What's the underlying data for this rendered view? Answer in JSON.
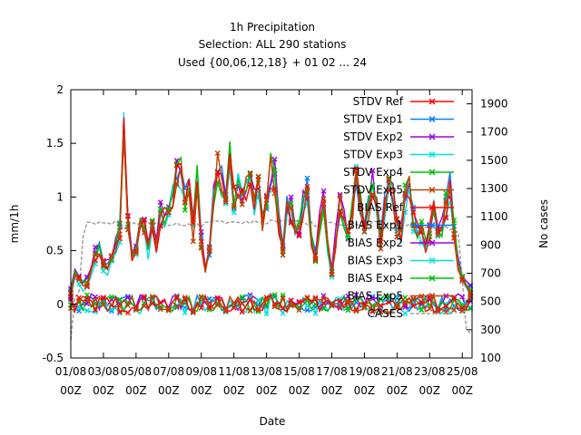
{
  "chart_data": {
    "type": "line",
    "title_lines": [
      "1h Precipitation",
      "Selection: ALL    290 stations",
      "Used {00,06,12,18} + 01 02 ... 24"
    ],
    "xlabel": "Date",
    "ylabel": "mm/1h",
    "y2label": "No cases",
    "ylim": [
      -0.5,
      2
    ],
    "y2lim": [
      100,
      2000
    ],
    "xlim": [
      0,
      24.6
    ],
    "yticks": [
      "-0.5",
      "0",
      "0.5",
      "1",
      "1.5",
      "2"
    ],
    "y2ticks": [
      "100",
      "300",
      "500",
      "700",
      "900",
      "1100",
      "1300",
      "1500",
      "1700",
      "1900"
    ],
    "xticks": [
      {
        "t": 0,
        "l1": "01/08",
        "l2": "00Z"
      },
      {
        "t": 2,
        "l1": "03/08",
        "l2": "00Z"
      },
      {
        "t": 4,
        "l1": "05/08",
        "l2": "00Z"
      },
      {
        "t": 6,
        "l1": "07/08",
        "l2": "00Z"
      },
      {
        "t": 8,
        "l1": "09/08",
        "l2": "00Z"
      },
      {
        "t": 10,
        "l1": "11/08",
        "l2": "00Z"
      },
      {
        "t": 12,
        "l1": "13/08",
        "l2": "00Z"
      },
      {
        "t": 14,
        "l1": "15/08",
        "l2": "00Z"
      },
      {
        "t": 16,
        "l1": "17/08",
        "l2": "00Z"
      },
      {
        "t": 18,
        "l1": "19/08",
        "l2": "00Z"
      },
      {
        "t": 20,
        "l1": "21/08",
        "l2": "00Z"
      },
      {
        "t": 22,
        "l1": "23/08",
        "l2": "00Z"
      },
      {
        "t": 24,
        "l1": "25/08",
        "l2": "00Z"
      }
    ],
    "legend_position": "top-right",
    "stdv_profile": [
      {
        "t": 0.0,
        "v": 0.1
      },
      {
        "t": 0.3,
        "v": 0.3
      },
      {
        "t": 0.6,
        "v": 0.2
      },
      {
        "t": 0.9,
        "v": 0.15
      },
      {
        "t": 1.2,
        "v": 0.3
      },
      {
        "t": 1.5,
        "v": 0.45
      },
      {
        "t": 1.8,
        "v": 0.55
      },
      {
        "t": 2.1,
        "v": 0.3
      },
      {
        "t": 2.4,
        "v": 0.4
      },
      {
        "t": 2.7,
        "v": 0.5
      },
      {
        "t": 3.0,
        "v": 0.7
      },
      {
        "t": 3.15,
        "v": 1.15
      },
      {
        "t": 3.3,
        "v": 1.95
      },
      {
        "t": 3.5,
        "v": 0.8
      },
      {
        "t": 3.8,
        "v": 0.4
      },
      {
        "t": 4.1,
        "v": 0.6
      },
      {
        "t": 4.4,
        "v": 0.95
      },
      {
        "t": 4.7,
        "v": 0.45
      },
      {
        "t": 5.0,
        "v": 0.8
      },
      {
        "t": 5.3,
        "v": 0.5
      },
      {
        "t": 5.6,
        "v": 1.0
      },
      {
        "t": 5.9,
        "v": 0.7
      },
      {
        "t": 6.1,
        "v": 1.25
      },
      {
        "t": 6.4,
        "v": 0.85
      },
      {
        "t": 6.6,
        "v": 1.55
      },
      {
        "t": 6.9,
        "v": 0.9
      },
      {
        "t": 7.2,
        "v": 1.2
      },
      {
        "t": 7.5,
        "v": 0.7
      },
      {
        "t": 7.8,
        "v": 1.3
      },
      {
        "t": 8.0,
        "v": 0.6
      },
      {
        "t": 8.2,
        "v": 0.3
      },
      {
        "t": 8.5,
        "v": 0.5
      },
      {
        "t": 8.8,
        "v": 1.1
      },
      {
        "t": 9.1,
        "v": 1.4
      },
      {
        "t": 9.4,
        "v": 0.9
      },
      {
        "t": 9.7,
        "v": 1.45
      },
      {
        "t": 10.0,
        "v": 1.0
      },
      {
        "t": 10.3,
        "v": 1.2
      },
      {
        "t": 10.6,
        "v": 0.9
      },
      {
        "t": 10.9,
        "v": 1.35
      },
      {
        "t": 11.2,
        "v": 0.9
      },
      {
        "t": 11.5,
        "v": 1.1
      },
      {
        "t": 11.8,
        "v": 0.7
      },
      {
        "t": 12.1,
        "v": 1.15
      },
      {
        "t": 12.4,
        "v": 1.38
      },
      {
        "t": 12.7,
        "v": 0.8
      },
      {
        "t": 13.0,
        "v": 0.5
      },
      {
        "t": 13.3,
        "v": 1.0
      },
      {
        "t": 13.6,
        "v": 0.8
      },
      {
        "t": 13.9,
        "v": 0.6
      },
      {
        "t": 14.2,
        "v": 0.9
      },
      {
        "t": 14.5,
        "v": 1.05
      },
      {
        "t": 14.8,
        "v": 0.5
      },
      {
        "t": 15.1,
        "v": 0.4
      },
      {
        "t": 15.4,
        "v": 1.08
      },
      {
        "t": 15.7,
        "v": 0.6
      },
      {
        "t": 16.0,
        "v": 0.3
      },
      {
        "t": 16.3,
        "v": 0.7
      },
      {
        "t": 16.6,
        "v": 1.05
      },
      {
        "t": 16.9,
        "v": 0.55
      },
      {
        "t": 17.2,
        "v": 0.8
      },
      {
        "t": 17.5,
        "v": 1.2
      },
      {
        "t": 17.8,
        "v": 0.9
      },
      {
        "t": 18.1,
        "v": 0.6
      },
      {
        "t": 18.4,
        "v": 1.2
      },
      {
        "t": 18.7,
        "v": 1.0
      },
      {
        "t": 19.0,
        "v": 0.6
      },
      {
        "t": 19.3,
        "v": 1.0
      },
      {
        "t": 19.6,
        "v": 1.3
      },
      {
        "t": 19.9,
        "v": 0.8
      },
      {
        "t": 20.2,
        "v": 0.6
      },
      {
        "t": 20.5,
        "v": 1.0
      },
      {
        "t": 20.8,
        "v": 1.2
      },
      {
        "t": 21.1,
        "v": 0.6
      },
      {
        "t": 21.4,
        "v": 0.8
      },
      {
        "t": 21.7,
        "v": 0.5
      },
      {
        "t": 22.0,
        "v": 0.7
      },
      {
        "t": 22.3,
        "v": 1.0
      },
      {
        "t": 22.6,
        "v": 0.6
      },
      {
        "t": 22.9,
        "v": 0.8
      },
      {
        "t": 23.2,
        "v": 1.2
      },
      {
        "t": 23.5,
        "v": 0.7
      },
      {
        "t": 23.8,
        "v": 0.3
      },
      {
        "t": 24.1,
        "v": 0.2
      },
      {
        "t": 24.4,
        "v": 0.15
      },
      {
        "t": 24.6,
        "v": 0.1
      }
    ],
    "cases_profile": [
      {
        "t": 0.0,
        "n": 240
      },
      {
        "t": 0.15,
        "n": 520
      },
      {
        "t": 0.6,
        "n": 560
      },
      {
        "t": 0.75,
        "n": 950
      },
      {
        "t": 1.0,
        "n": 1060
      },
      {
        "t": 3.0,
        "n": 1060
      },
      {
        "t": 3.3,
        "n": 1000
      },
      {
        "t": 3.6,
        "n": 1060
      },
      {
        "t": 8.0,
        "n": 1040
      },
      {
        "t": 8.4,
        "n": 1080
      },
      {
        "t": 10.0,
        "n": 1060
      },
      {
        "t": 12.0,
        "n": 1060
      },
      {
        "t": 14.0,
        "n": 1080
      },
      {
        "t": 15.0,
        "n": 1040
      },
      {
        "t": 16.0,
        "n": 1060
      },
      {
        "t": 18.0,
        "n": 1040
      },
      {
        "t": 19.0,
        "n": 1060
      },
      {
        "t": 20.0,
        "n": 1040
      },
      {
        "t": 22.0,
        "n": 1030
      },
      {
        "t": 23.0,
        "n": 1020
      },
      {
        "t": 23.6,
        "n": 1000
      },
      {
        "t": 23.9,
        "n": 980
      },
      {
        "t": 24.1,
        "n": 300
      },
      {
        "t": 24.6,
        "n": 260
      }
    ],
    "series": [
      {
        "name": "STDV Ref",
        "color": "#ff0000",
        "kind": "stdv",
        "offset": 0.0
      },
      {
        "name": "STDV Exp1",
        "color": "#0080ff",
        "kind": "stdv",
        "offset": 0.03
      },
      {
        "name": "STDV Exp2",
        "color": "#a000e0",
        "kind": "stdv",
        "offset": 0.05
      },
      {
        "name": "STDV Exp3",
        "color": "#00e0e0",
        "kind": "stdv",
        "offset": -0.03
      },
      {
        "name": "STDV Exp4",
        "color": "#00c000",
        "kind": "stdv",
        "offset": 0.02
      },
      {
        "name": "STDV Exp5",
        "color": "#c04000",
        "kind": "stdv",
        "offset": -0.01
      },
      {
        "name": "BIAS Ref",
        "color": "#ff0000",
        "kind": "bias",
        "offset": 0.0
      },
      {
        "name": "BIAS Exp1",
        "color": "#0080ff",
        "kind": "bias",
        "offset": 0.01
      },
      {
        "name": "BIAS Exp2",
        "color": "#a000e0",
        "kind": "bias",
        "offset": 0.02
      },
      {
        "name": "BIAS Exp3",
        "color": "#00e0e0",
        "kind": "bias",
        "offset": -0.01
      },
      {
        "name": "BIAS Exp4",
        "color": "#00c000",
        "kind": "bias",
        "offset": 0.01
      },
      {
        "name": "BIAS Exp5",
        "color": "#c04000",
        "kind": "bias",
        "offset": 0.0
      },
      {
        "name": "CASES",
        "color": "#a0a0a0",
        "kind": "cases"
      }
    ]
  }
}
